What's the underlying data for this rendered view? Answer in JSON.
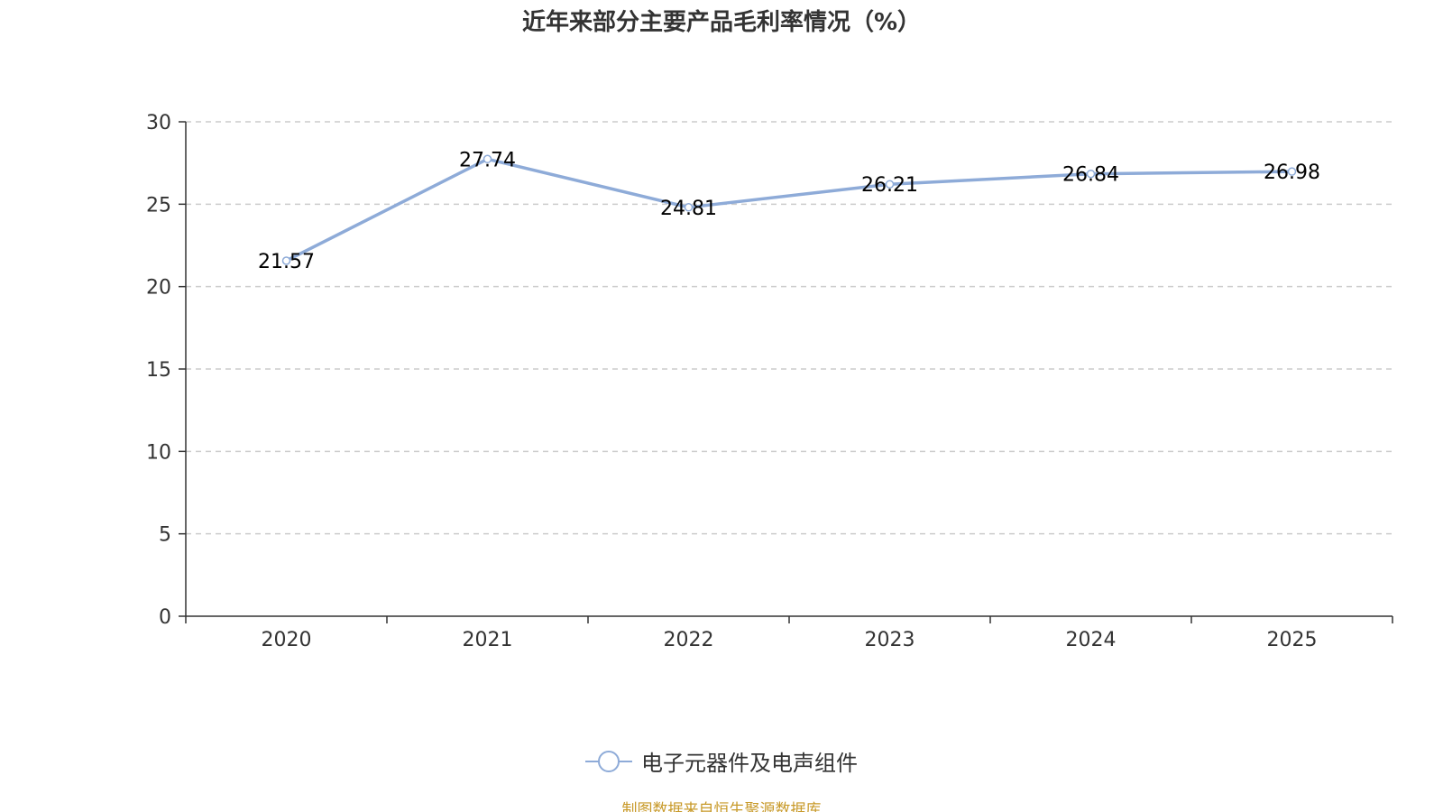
{
  "chart_data": {
    "type": "line",
    "title": "近年来部分主要产品毛利率情况（%）",
    "categories": [
      "2020",
      "2021",
      "2022",
      "2023",
      "2024",
      "2025"
    ],
    "series": [
      {
        "name": "电子元器件及电声组件",
        "values": [
          21.57,
          27.74,
          24.81,
          26.21,
          26.84,
          26.98
        ],
        "color": "#8eabd8"
      }
    ],
    "ylim": [
      0,
      30
    ],
    "yticks": [
      "0",
      "5",
      "10",
      "15",
      "20",
      "25",
      "30"
    ],
    "data_labels": [
      "21.57",
      "27.74",
      "24.81",
      "26.21",
      "26.84",
      "26.98"
    ],
    "grid": true,
    "legend_position": "bottom-center",
    "xlabel": "",
    "ylabel": ""
  },
  "footer": {
    "source": "制图数据来自恒生聚源数据库"
  },
  "colors": {
    "axis": "#333333",
    "grid": "#cccccc",
    "series": "#8eabd8",
    "source": "#c89a2a"
  }
}
